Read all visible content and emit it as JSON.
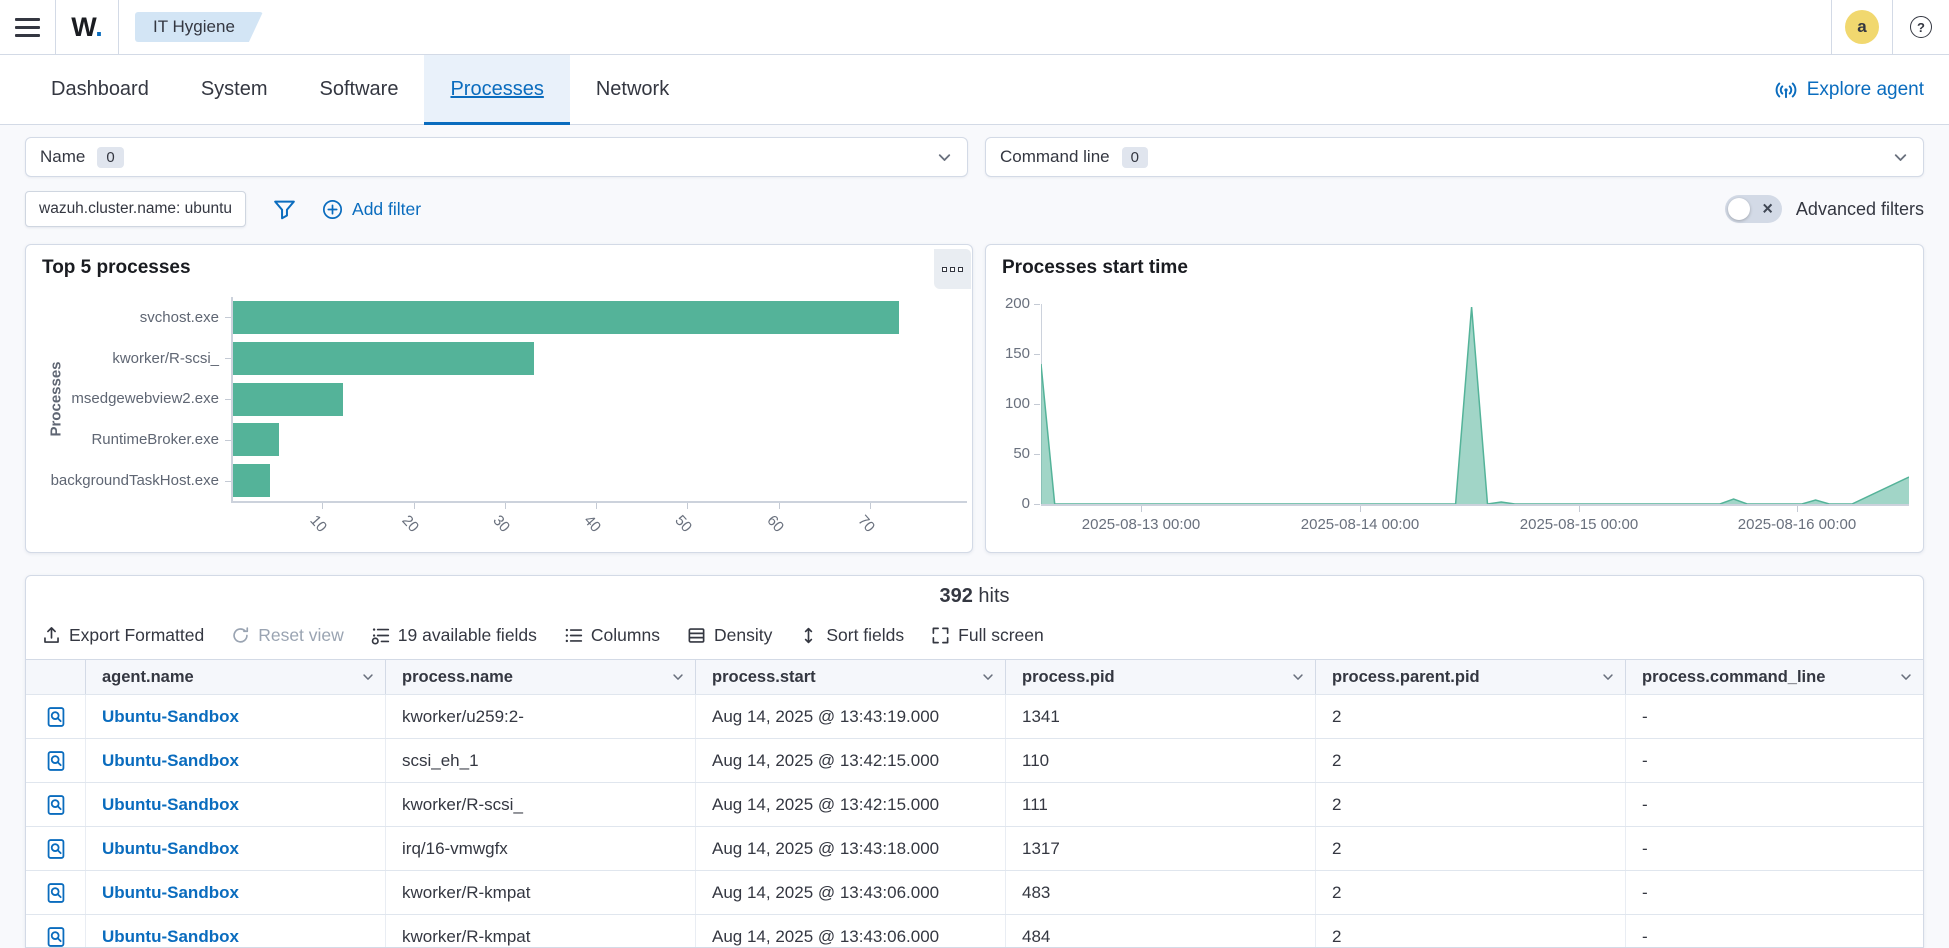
{
  "colors": {
    "accent": "#0a6cbe",
    "teal": "#54b399",
    "text": "#343741",
    "subdued": "#69707d",
    "border": "#d3dae6",
    "avatar_bg": "#f1d86f",
    "breadcrumb_bg": "#d3e5f5"
  },
  "header": {
    "logo_text": "W",
    "logo_dot": ".",
    "breadcrumb": "IT Hygiene",
    "avatar_initial": "a"
  },
  "tabs": {
    "items": [
      "Dashboard",
      "System",
      "Software",
      "Processes",
      "Network"
    ],
    "active": "Processes",
    "explore_agent_label": "Explore agent"
  },
  "filters": {
    "name_combo": {
      "label": "Name",
      "count": "0"
    },
    "command_combo": {
      "label": "Command line",
      "count": "0"
    },
    "pill_label": "wazuh.cluster.name: ubuntu",
    "add_filter_label": "Add filter",
    "advanced_filters_label": "Advanced filters",
    "toggle_state": "off"
  },
  "chart_data": [
    {
      "type": "bar",
      "orientation": "horizontal",
      "title": "Top 5 processes",
      "ylabel": "Processes",
      "categories": [
        "svchost.exe",
        "kworker/R-scsi_",
        "msedgewebview2.exe",
        "RuntimeBroker.exe",
        "backgroundTaskHost.exe"
      ],
      "values": [
        73,
        33,
        12,
        5,
        4
      ],
      "xticks": [
        10,
        20,
        30,
        40,
        50,
        60,
        70
      ],
      "xlim": [
        0,
        80
      ],
      "color": "#54b399",
      "grid": false,
      "legend": false
    },
    {
      "type": "area",
      "title": "Processes start time",
      "x_domain": [
        "2025-08-12 13:00",
        "2025-08-16 12:15"
      ],
      "points": [
        [
          "2025-08-12 13:00",
          140
        ],
        [
          "2025-08-12 14:30",
          0
        ],
        [
          "2025-08-14 10:30",
          0
        ],
        [
          "2025-08-14 12:15",
          197
        ],
        [
          "2025-08-14 14:00",
          0
        ],
        [
          "2025-08-14 15:30",
          2
        ],
        [
          "2025-08-14 17:00",
          0
        ],
        [
          "2025-08-15 15:30",
          0
        ],
        [
          "2025-08-15 17:00",
          5
        ],
        [
          "2025-08-15 18:30",
          0
        ],
        [
          "2025-08-16 00:30",
          0
        ],
        [
          "2025-08-16 02:00",
          4
        ],
        [
          "2025-08-16 03:30",
          0
        ],
        [
          "2025-08-16 06:00",
          0
        ],
        [
          "2025-08-16 12:15",
          27
        ]
      ],
      "yticks": [
        0,
        50,
        100,
        150,
        200
      ],
      "ylim": [
        0,
        200
      ],
      "xticks": [
        "2025-08-13 00:00",
        "2025-08-14 00:00",
        "2025-08-15 00:00",
        "2025-08-16 00:00"
      ],
      "color": "#54b399",
      "grid": false,
      "legend": false
    }
  ],
  "results": {
    "hits_count": "392",
    "hits_label": "hits",
    "toolbar": [
      {
        "label": "Export Formatted",
        "icon": "export",
        "disabled": false
      },
      {
        "label": "Reset view",
        "icon": "refresh",
        "disabled": true
      },
      {
        "label": "19 available fields",
        "icon": "fields",
        "disabled": false
      },
      {
        "label": "Columns",
        "icon": "columns",
        "disabled": false
      },
      {
        "label": "Density",
        "icon": "density",
        "disabled": false
      },
      {
        "label": "Sort fields",
        "icon": "sort",
        "disabled": false
      },
      {
        "label": "Full screen",
        "icon": "fullscreen",
        "disabled": false
      }
    ]
  },
  "table": {
    "columns": [
      "agent.name",
      "process.name",
      "process.start",
      "process.pid",
      "process.parent.pid",
      "process.command_line"
    ],
    "rows": [
      [
        "Ubuntu-Sandbox",
        "kworker/u259:2-",
        "Aug 14, 2025 @ 13:43:19.000",
        "1341",
        "2",
        "-"
      ],
      [
        "Ubuntu-Sandbox",
        "scsi_eh_1",
        "Aug 14, 2025 @ 13:42:15.000",
        "110",
        "2",
        "-"
      ],
      [
        "Ubuntu-Sandbox",
        "kworker/R-scsi_",
        "Aug 14, 2025 @ 13:42:15.000",
        "111",
        "2",
        "-"
      ],
      [
        "Ubuntu-Sandbox",
        "irq/16-vmwgfx",
        "Aug 14, 2025 @ 13:43:18.000",
        "1317",
        "2",
        "-"
      ],
      [
        "Ubuntu-Sandbox",
        "kworker/R-kmpat",
        "Aug 14, 2025 @ 13:43:06.000",
        "483",
        "2",
        "-"
      ],
      [
        "Ubuntu-Sandbox",
        "kworker/R-kmpat",
        "Aug 14, 2025 @ 13:43:06.000",
        "484",
        "2",
        "-"
      ]
    ]
  }
}
